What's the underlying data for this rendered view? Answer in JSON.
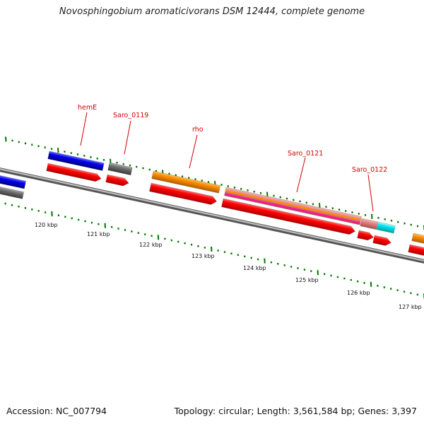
{
  "title": "Novosphingobium aromaticivorans DSM 12444, complete genome",
  "footer": {
    "accession": "Accession: NC_007794",
    "summary": "Topology: circular; Length: 3,561,584 bp; Genes: 3,397"
  },
  "gene_labels": [
    {
      "id": "hemE",
      "text": "hemE"
    },
    {
      "id": "saro_0119",
      "text": "Saro_0119"
    },
    {
      "id": "rho",
      "text": "rho"
    },
    {
      "id": "saro_0121",
      "text": "Saro_0121"
    },
    {
      "id": "saro_0122",
      "text": "Saro_0122"
    }
  ],
  "scale_labels": [
    "120 kbp",
    "121 kbp",
    "122 kbp",
    "123 kbp",
    "124 kbp",
    "125 kbp",
    "126 kbp",
    "127 kbp"
  ],
  "colors": {
    "backbone": "#888888",
    "cds": "#ff0000",
    "gene_blue": "#0000ee",
    "gene_gray": "#666666",
    "gene_orange": "#ff8c00",
    "gene_pink": "#e08080",
    "gene_cyan": "#00e5ee",
    "gene_magenta": "#ff1493",
    "tick": "#007700",
    "label": "#d00000"
  }
}
